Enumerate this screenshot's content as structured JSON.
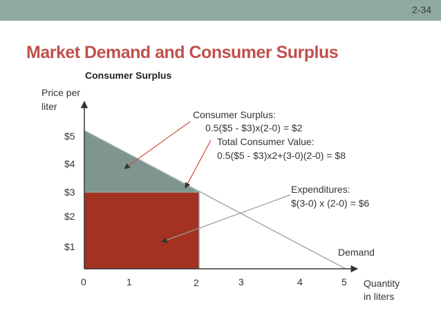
{
  "slide_number": "2-34",
  "title": "Market Demand and Consumer Surplus",
  "subtitle": "Consumer Surplus",
  "y_axis_label": [
    "Price per",
    "liter"
  ],
  "x_axis_label": [
    "Quantity",
    "in liters"
  ],
  "price_ticks": [
    "$5",
    "$4",
    "$3",
    "$2",
    "$1"
  ],
  "quantity_ticks": [
    "0",
    "1",
    "2",
    "3",
    "4",
    "5"
  ],
  "demand_label": "Demand",
  "annotations": {
    "cs_title": "Consumer Surplus:",
    "cs_formula": "0.5($5 - $3)x(2-0) = $2",
    "tcv_title": "Total Consumer Value:",
    "tcv_formula": "0.5($5 - $3)x2+(3-0)(2-0) = $8",
    "exp_title": "Expenditures:",
    "exp_formula": "$(3-0) x (2-0) = $6"
  },
  "colors": {
    "title": "#c0504d",
    "consumer_surplus_fill": "#7f9690",
    "expenditure_fill": "#a33222",
    "demand_line": "#a0a8a6",
    "arrow": "#d24b3a"
  },
  "chart_data": {
    "type": "area",
    "demand_curve": {
      "x": [
        0,
        5
      ],
      "y": [
        5,
        0
      ]
    },
    "price": 3,
    "quantity": 2,
    "consumer_surplus": 2,
    "total_consumer_value": 8,
    "expenditures": 6
  }
}
